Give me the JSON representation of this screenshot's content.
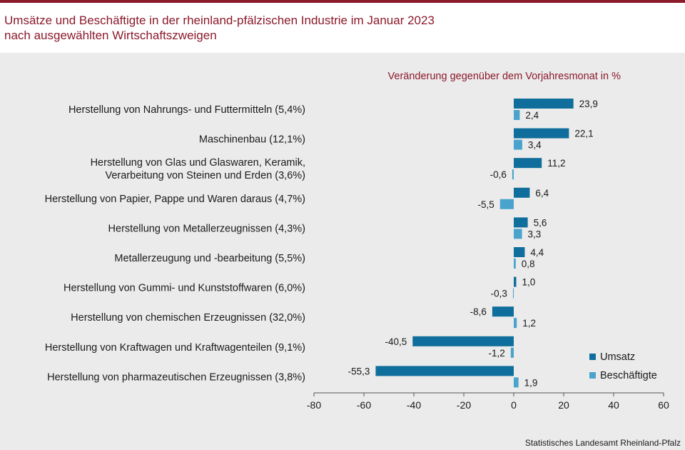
{
  "header": {
    "title_line1": "Umsätze und Beschäftigte in der rheinland-pfälzischen Industrie im Januar 2023",
    "title_line2": "nach ausgewählten Wirtschaftszweigen"
  },
  "chart_data": {
    "type": "bar",
    "orientation": "horizontal",
    "subtitle": "Veränderung gegenüber dem Vorjahresmonat in %",
    "categories": [
      "Herstellung von Nahrungs- und Futtermitteln (5,4%)",
      "Maschinenbau (12,1%)",
      "Herstellung von Glas und Glaswaren, Keramik, Verarbeitung von Steinen und Erden (3,6%)",
      "Herstellung von Papier, Pappe und Waren daraus (4,7%)",
      "Herstellung von Metallerzeugnissen (4,3%)",
      "Metallerzeugung und -bearbeitung (5,5%)",
      "Herstellung von Gummi- und Kunststoffwaren (6,0%)",
      "Herstellung von chemischen Erzeugnissen (32,0%)",
      "Herstellung von Kraftwagen und Kraftwagenteilen (9,1%)",
      "Herstellung von pharmazeutischen Erzeugnissen (3,8%)"
    ],
    "category_lines": [
      [
        "Herstellung von Nahrungs- und Futtermitteln (5,4%)"
      ],
      [
        "Maschinenbau (12,1%)"
      ],
      [
        "Herstellung von Glas und Glaswaren, Keramik,",
        "Verarbeitung von Steinen und Erden (3,6%)"
      ],
      [
        "Herstellung von Papier, Pappe und Waren daraus (4,7%)"
      ],
      [
        "Herstellung von Metallerzeugnissen (4,3%)"
      ],
      [
        "Metallerzeugung und -bearbeitung (5,5%)"
      ],
      [
        "Herstellung von Gummi- und Kunststoffwaren (6,0%)"
      ],
      [
        "Herstellung von chemischen Erzeugnissen (32,0%)"
      ],
      [
        "Herstellung von Kraftwagen und Kraftwagenteilen (9,1%)"
      ],
      [
        "Herstellung von pharmazeutischen Erzeugnissen (3,8%)"
      ]
    ],
    "series": [
      {
        "name": "Umsatz",
        "color": "#0f6e9b",
        "values": [
          23.9,
          22.1,
          11.2,
          6.4,
          5.6,
          4.4,
          1.0,
          -8.6,
          -40.5,
          -55.3
        ],
        "labels": [
          "23,9",
          "22,1",
          "11,2",
          "6,4",
          "5,6",
          "4,4",
          "1,0",
          "-8,6",
          "-40,5",
          "-55,3"
        ]
      },
      {
        "name": "Beschäftigte",
        "color": "#4aa3cc",
        "values": [
          2.4,
          3.4,
          -0.6,
          -5.5,
          3.3,
          0.8,
          -0.3,
          1.2,
          -1.2,
          1.9
        ],
        "labels": [
          "2,4",
          "3,4",
          "-0,6",
          "-5,5",
          "3,3",
          "0,8",
          "-0,3",
          "1,2",
          "-1,2",
          "1,9"
        ]
      }
    ],
    "xlim": [
      -80,
      60
    ],
    "xticks": [
      -80,
      -60,
      -40,
      -20,
      0,
      20,
      40,
      60
    ],
    "xtick_labels": [
      "-80",
      "-60",
      "-40",
      "-20",
      "0",
      "20",
      "40",
      "60"
    ],
    "grid": false,
    "legend_position": "bottom-right"
  },
  "footer": {
    "source": "Statistisches Landesamt Rheinland-Pfalz"
  }
}
